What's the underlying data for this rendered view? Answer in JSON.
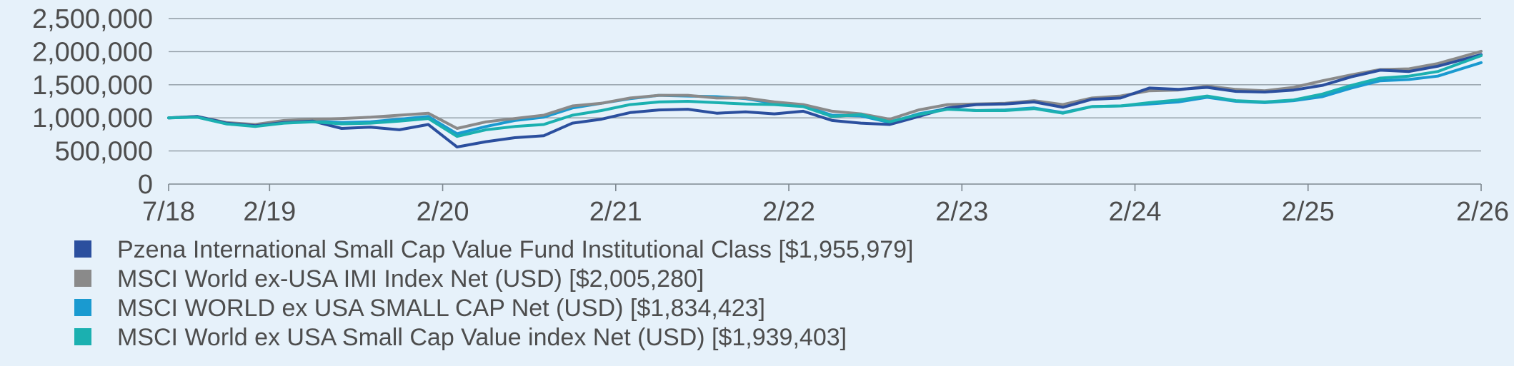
{
  "chart_data": {
    "type": "line",
    "title": "",
    "xlabel": "",
    "ylabel": "",
    "ylim": [
      0,
      2500000
    ],
    "yticks": [
      0,
      500000,
      1000000,
      1500000,
      2000000,
      2500000
    ],
    "ytick_labels": [
      "0",
      "500,000",
      "1,000,000",
      "1,500,000",
      "2,000,000",
      "2,500,000"
    ],
    "x_range": [
      "2018-07",
      "2026-02"
    ],
    "xtick_labels": [
      "7/18",
      "2/19",
      "2/20",
      "2/21",
      "2/22",
      "2/23",
      "2/24",
      "2/25",
      "2/26"
    ],
    "xtick_dates": [
      "2018-07",
      "2019-02",
      "2020-02",
      "2021-02",
      "2022-02",
      "2023-02",
      "2024-02",
      "2025-02",
      "2026-02"
    ],
    "grid": "horizontal",
    "legend_position": "bottom",
    "series": [
      {
        "name": "Pzena International Small Cap Value Fund Institutional Class [$1,955,979]",
        "color": "#2b4f9e",
        "points": [
          [
            "2018-07",
            1000000
          ],
          [
            "2018-09",
            1020000
          ],
          [
            "2018-11",
            920000
          ],
          [
            "2019-01",
            880000
          ],
          [
            "2019-03",
            930000
          ],
          [
            "2019-05",
            950000
          ],
          [
            "2019-07",
            840000
          ],
          [
            "2019-09",
            860000
          ],
          [
            "2019-11",
            820000
          ],
          [
            "2020-01",
            900000
          ],
          [
            "2020-03",
            560000
          ],
          [
            "2020-05",
            640000
          ],
          [
            "2020-07",
            700000
          ],
          [
            "2020-09",
            730000
          ],
          [
            "2020-11",
            920000
          ],
          [
            "2021-01",
            980000
          ],
          [
            "2021-03",
            1080000
          ],
          [
            "2021-05",
            1120000
          ],
          [
            "2021-07",
            1130000
          ],
          [
            "2021-09",
            1070000
          ],
          [
            "2021-11",
            1090000
          ],
          [
            "2022-01",
            1060000
          ],
          [
            "2022-03",
            1100000
          ],
          [
            "2022-05",
            960000
          ],
          [
            "2022-07",
            920000
          ],
          [
            "2022-09",
            900000
          ],
          [
            "2022-11",
            1020000
          ],
          [
            "2023-01",
            1150000
          ],
          [
            "2023-03",
            1200000
          ],
          [
            "2023-05",
            1210000
          ],
          [
            "2023-07",
            1240000
          ],
          [
            "2023-09",
            1160000
          ],
          [
            "2023-11",
            1280000
          ],
          [
            "2024-01",
            1300000
          ],
          [
            "2024-03",
            1450000
          ],
          [
            "2024-05",
            1430000
          ],
          [
            "2024-07",
            1460000
          ],
          [
            "2024-09",
            1400000
          ],
          [
            "2024-11",
            1390000
          ],
          [
            "2025-01",
            1420000
          ],
          [
            "2025-03",
            1490000
          ],
          [
            "2025-05",
            1620000
          ],
          [
            "2025-07",
            1720000
          ],
          [
            "2025-09",
            1700000
          ],
          [
            "2025-11",
            1780000
          ],
          [
            "2026-02",
            1955979
          ]
        ]
      },
      {
        "name": "MSCI World ex-USA IMI Index Net (USD) [$2,005,280]",
        "color": "#8a8a8a",
        "points": [
          [
            "2018-07",
            1000000
          ],
          [
            "2018-09",
            1020000
          ],
          [
            "2018-11",
            930000
          ],
          [
            "2019-01",
            900000
          ],
          [
            "2019-03",
            960000
          ],
          [
            "2019-05",
            980000
          ],
          [
            "2019-07",
            990000
          ],
          [
            "2019-09",
            1010000
          ],
          [
            "2019-11",
            1040000
          ],
          [
            "2020-01",
            1070000
          ],
          [
            "2020-03",
            840000
          ],
          [
            "2020-05",
            940000
          ],
          [
            "2020-07",
            990000
          ],
          [
            "2020-09",
            1040000
          ],
          [
            "2020-11",
            1180000
          ],
          [
            "2021-01",
            1220000
          ],
          [
            "2021-03",
            1300000
          ],
          [
            "2021-05",
            1340000
          ],
          [
            "2021-07",
            1340000
          ],
          [
            "2021-09",
            1300000
          ],
          [
            "2021-11",
            1300000
          ],
          [
            "2022-01",
            1240000
          ],
          [
            "2022-03",
            1200000
          ],
          [
            "2022-05",
            1100000
          ],
          [
            "2022-07",
            1060000
          ],
          [
            "2022-09",
            980000
          ],
          [
            "2022-11",
            1120000
          ],
          [
            "2023-01",
            1200000
          ],
          [
            "2023-03",
            1210000
          ],
          [
            "2023-05",
            1220000
          ],
          [
            "2023-07",
            1260000
          ],
          [
            "2023-09",
            1200000
          ],
          [
            "2023-11",
            1300000
          ],
          [
            "2024-01",
            1330000
          ],
          [
            "2024-03",
            1410000
          ],
          [
            "2024-05",
            1420000
          ],
          [
            "2024-07",
            1480000
          ],
          [
            "2024-09",
            1430000
          ],
          [
            "2024-11",
            1410000
          ],
          [
            "2025-01",
            1460000
          ],
          [
            "2025-03",
            1560000
          ],
          [
            "2025-05",
            1650000
          ],
          [
            "2025-07",
            1730000
          ],
          [
            "2025-09",
            1740000
          ],
          [
            "2025-11",
            1820000
          ],
          [
            "2026-02",
            2005280
          ]
        ]
      },
      {
        "name": "MSCI WORLD ex USA SMALL CAP Net (USD) [$1,834,423]",
        "color": "#1a9ad0",
        "points": [
          [
            "2018-07",
            1000000
          ],
          [
            "2018-09",
            1010000
          ],
          [
            "2018-11",
            910000
          ],
          [
            "2019-01",
            880000
          ],
          [
            "2019-03",
            930000
          ],
          [
            "2019-05",
            950000
          ],
          [
            "2019-07",
            930000
          ],
          [
            "2019-09",
            940000
          ],
          [
            "2019-11",
            980000
          ],
          [
            "2020-01",
            1020000
          ],
          [
            "2020-03",
            760000
          ],
          [
            "2020-05",
            870000
          ],
          [
            "2020-07",
            960000
          ],
          [
            "2020-09",
            1010000
          ],
          [
            "2020-11",
            1150000
          ],
          [
            "2021-01",
            1220000
          ],
          [
            "2021-03",
            1290000
          ],
          [
            "2021-05",
            1340000
          ],
          [
            "2021-07",
            1330000
          ],
          [
            "2021-09",
            1320000
          ],
          [
            "2021-11",
            1290000
          ],
          [
            "2022-01",
            1220000
          ],
          [
            "2022-03",
            1180000
          ],
          [
            "2022-05",
            1040000
          ],
          [
            "2022-07",
            1030000
          ],
          [
            "2022-09",
            930000
          ],
          [
            "2022-11",
            1060000
          ],
          [
            "2023-01",
            1140000
          ],
          [
            "2023-03",
            1110000
          ],
          [
            "2023-05",
            1120000
          ],
          [
            "2023-07",
            1150000
          ],
          [
            "2023-09",
            1080000
          ],
          [
            "2023-11",
            1170000
          ],
          [
            "2024-01",
            1180000
          ],
          [
            "2024-03",
            1210000
          ],
          [
            "2024-05",
            1240000
          ],
          [
            "2024-07",
            1310000
          ],
          [
            "2024-09",
            1250000
          ],
          [
            "2024-11",
            1230000
          ],
          [
            "2025-01",
            1260000
          ],
          [
            "2025-03",
            1320000
          ],
          [
            "2025-05",
            1450000
          ],
          [
            "2025-07",
            1560000
          ],
          [
            "2025-09",
            1580000
          ],
          [
            "2025-11",
            1630000
          ],
          [
            "2026-02",
            1834423
          ]
        ]
      },
      {
        "name": "MSCI World ex USA Small Cap Value index Net (USD) [$1,939,403]",
        "color": "#1bb0b0",
        "points": [
          [
            "2018-07",
            1000000
          ],
          [
            "2018-09",
            1010000
          ],
          [
            "2018-11",
            910000
          ],
          [
            "2019-01",
            870000
          ],
          [
            "2019-03",
            920000
          ],
          [
            "2019-05",
            940000
          ],
          [
            "2019-07",
            910000
          ],
          [
            "2019-09",
            920000
          ],
          [
            "2019-11",
            950000
          ],
          [
            "2020-01",
            990000
          ],
          [
            "2020-03",
            720000
          ],
          [
            "2020-05",
            820000
          ],
          [
            "2020-07",
            870000
          ],
          [
            "2020-09",
            900000
          ],
          [
            "2020-11",
            1040000
          ],
          [
            "2021-01",
            1110000
          ],
          [
            "2021-03",
            1200000
          ],
          [
            "2021-05",
            1240000
          ],
          [
            "2021-07",
            1250000
          ],
          [
            "2021-09",
            1230000
          ],
          [
            "2021-11",
            1210000
          ],
          [
            "2022-01",
            1200000
          ],
          [
            "2022-03",
            1170000
          ],
          [
            "2022-05",
            1020000
          ],
          [
            "2022-07",
            1050000
          ],
          [
            "2022-09",
            940000
          ],
          [
            "2022-11",
            1050000
          ],
          [
            "2023-01",
            1130000
          ],
          [
            "2023-03",
            1110000
          ],
          [
            "2023-05",
            1110000
          ],
          [
            "2023-07",
            1140000
          ],
          [
            "2023-09",
            1070000
          ],
          [
            "2023-11",
            1170000
          ],
          [
            "2024-01",
            1180000
          ],
          [
            "2024-03",
            1230000
          ],
          [
            "2024-05",
            1270000
          ],
          [
            "2024-07",
            1330000
          ],
          [
            "2024-09",
            1260000
          ],
          [
            "2024-11",
            1240000
          ],
          [
            "2025-01",
            1270000
          ],
          [
            "2025-03",
            1360000
          ],
          [
            "2025-05",
            1490000
          ],
          [
            "2025-07",
            1600000
          ],
          [
            "2025-09",
            1630000
          ],
          [
            "2025-11",
            1700000
          ],
          [
            "2026-02",
            1939403
          ]
        ]
      }
    ]
  }
}
